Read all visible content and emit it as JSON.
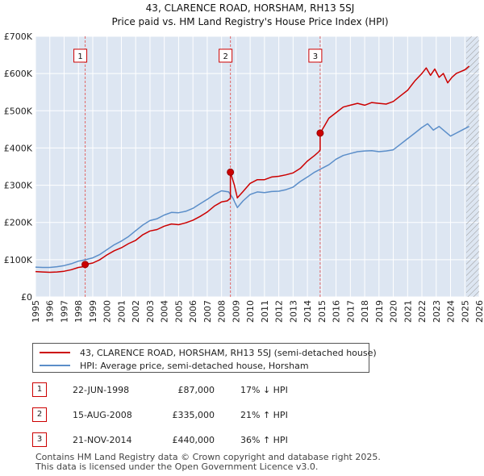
{
  "chart_data": {
    "type": "line",
    "title": "43, CLARENCE ROAD, HORSHAM, RH13 5SJ",
    "subtitle": "Price paid vs. HM Land Registry's House Price Index (HPI)",
    "xlabel": "",
    "ylabel": "",
    "xlim": [
      1995,
      2026
    ],
    "ylim": [
      0,
      700000
    ],
    "x_ticks": [
      "1995",
      "1996",
      "1997",
      "1998",
      "1999",
      "2000",
      "2001",
      "2002",
      "2003",
      "2004",
      "2005",
      "2006",
      "2007",
      "2008",
      "2009",
      "2010",
      "2011",
      "2012",
      "2013",
      "2014",
      "2015",
      "2016",
      "2017",
      "2018",
      "2019",
      "2020",
      "2021",
      "2022",
      "2023",
      "2024",
      "2025",
      "2026"
    ],
    "y_ticks": [
      {
        "value": 0,
        "label": "£0"
      },
      {
        "value": 100000,
        "label": "£100K"
      },
      {
        "value": 200000,
        "label": "£200K"
      },
      {
        "value": 300000,
        "label": "£300K"
      },
      {
        "value": 400000,
        "label": "£400K"
      },
      {
        "value": 500000,
        "label": "£500K"
      },
      {
        "value": 600000,
        "label": "£600K"
      },
      {
        "value": 700000,
        "label": "£700K"
      }
    ],
    "grid": true,
    "series": [
      {
        "name": "43, CLARENCE ROAD, HORSHAM, RH13 5SJ (semi-detached house)",
        "color": "#cc0000",
        "x": [
          1995.0,
          1995.5,
          1996.0,
          1996.5,
          1997.0,
          1997.5,
          1998.0,
          1998.47,
          1998.47,
          1999.0,
          1999.5,
          2000.0,
          2000.5,
          2001.0,
          2001.5,
          2002.0,
          2002.5,
          2003.0,
          2003.5,
          2004.0,
          2004.5,
          2005.0,
          2005.5,
          2006.0,
          2006.5,
          2007.0,
          2007.5,
          2008.0,
          2008.4,
          2008.62,
          2008.62,
          2008.9,
          2009.1,
          2009.5,
          2010.0,
          2010.5,
          2011.0,
          2011.5,
          2012.0,
          2012.5,
          2013.0,
          2013.5,
          2014.0,
          2014.5,
          2014.8,
          2014.89,
          2014.89,
          2015.2,
          2015.5,
          2016.0,
          2016.5,
          2017.0,
          2017.5,
          2018.0,
          2018.5,
          2019.0,
          2019.5,
          2020.0,
          2020.5,
          2021.0,
          2021.5,
          2022.0,
          2022.3,
          2022.6,
          2022.9,
          2023.2,
          2023.5,
          2023.8,
          2024.1,
          2024.4,
          2024.7,
          2025.0,
          2025.3
        ],
        "values": [
          68000,
          67000,
          66000,
          67000,
          69000,
          73000,
          79000,
          82000,
          87000,
          91000,
          100000,
          113000,
          124000,
          132000,
          143000,
          152000,
          167000,
          177000,
          181000,
          190000,
          196000,
          194000,
          199000,
          206000,
          216000,
          228000,
          244000,
          255000,
          258000,
          265000,
          335000,
          300000,
          266000,
          283000,
          305000,
          315000,
          315000,
          322000,
          324000,
          328000,
          333000,
          345000,
          365000,
          380000,
          390000,
          395000,
          440000,
          460000,
          480000,
          495000,
          510000,
          515000,
          520000,
          515000,
          522000,
          520000,
          518000,
          525000,
          540000,
          555000,
          580000,
          600000,
          615000,
          595000,
          612000,
          590000,
          600000,
          575000,
          590000,
          600000,
          605000,
          610000,
          620000
        ]
      },
      {
        "name": "HPI: Average price, semi-detached house, Horsham",
        "color": "#5b8ec9",
        "x": [
          1995.0,
          1995.5,
          1996.0,
          1996.5,
          1997.0,
          1997.5,
          1998.0,
          1998.5,
          1999.0,
          1999.5,
          2000.0,
          2000.5,
          2001.0,
          2001.5,
          2002.0,
          2002.5,
          2003.0,
          2003.5,
          2004.0,
          2004.5,
          2005.0,
          2005.5,
          2006.0,
          2006.5,
          2007.0,
          2007.5,
          2008.0,
          2008.5,
          2008.8,
          2009.1,
          2009.5,
          2010.0,
          2010.5,
          2011.0,
          2011.5,
          2012.0,
          2012.5,
          2013.0,
          2013.5,
          2014.0,
          2014.5,
          2015.0,
          2015.5,
          2016.0,
          2016.5,
          2017.0,
          2017.5,
          2018.0,
          2018.5,
          2019.0,
          2019.5,
          2020.0,
          2020.5,
          2021.0,
          2021.5,
          2022.0,
          2022.4,
          2022.8,
          2023.2,
          2023.6,
          2024.0,
          2024.4,
          2024.8,
          2025.3
        ],
        "values": [
          80000,
          79000,
          79000,
          81000,
          84000,
          89000,
          96000,
          100000,
          105000,
          114000,
          127000,
          140000,
          150000,
          162000,
          178000,
          193000,
          205000,
          210000,
          220000,
          227000,
          226000,
          230000,
          238000,
          250000,
          262000,
          275000,
          285000,
          282000,
          265000,
          240000,
          258000,
          275000,
          282000,
          280000,
          283000,
          284000,
          288000,
          295000,
          310000,
          322000,
          335000,
          345000,
          355000,
          370000,
          380000,
          385000,
          390000,
          392000,
          393000,
          390000,
          392000,
          395000,
          410000,
          425000,
          440000,
          455000,
          465000,
          448000,
          458000,
          445000,
          432000,
          440000,
          448000,
          458000
        ]
      }
    ],
    "sales": [
      {
        "num": "1",
        "x": 1998.47,
        "value": 87000,
        "date": "22-JUN-1998",
        "price": "£87,000",
        "hpi": "17% ↓ HPI"
      },
      {
        "num": "2",
        "x": 2008.62,
        "value": 335000,
        "date": "15-AUG-2008",
        "price": "£335,000",
        "hpi": "21% ↑ HPI"
      },
      {
        "num": "3",
        "x": 2014.89,
        "value": 440000,
        "date": "21-NOV-2014",
        "price": "£440,000",
        "hpi": "36% ↑ HPI"
      }
    ],
    "hatch_from": 2025.1,
    "sale_line_color": "#e06666",
    "background": "#dde6f2",
    "grid_color": "#ffffff"
  },
  "legend": {
    "items": [
      {
        "label": "43, CLARENCE ROAD, HORSHAM, RH13 5SJ (semi-detached house)",
        "color": "#cc0000"
      },
      {
        "label": "HPI: Average price, semi-detached house, Horsham",
        "color": "#5b8ec9"
      }
    ]
  },
  "footer": {
    "line1": "Contains HM Land Registry data © Crown copyright and database right 2025.",
    "line2": "This data is licensed under the Open Government Licence v3.0."
  }
}
